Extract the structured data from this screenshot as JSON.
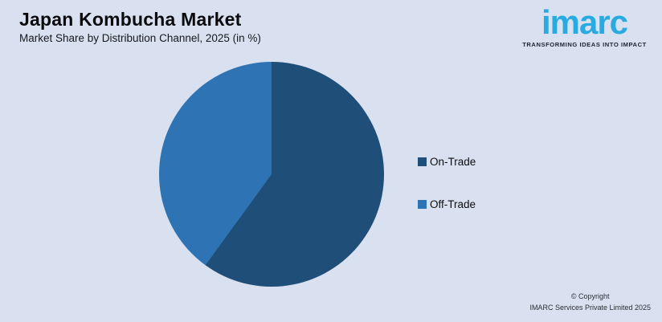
{
  "header": {
    "title": "Japan Kombucha Market",
    "subtitle": "Market Share by Distribution Channel, 2025 (in %)"
  },
  "logo": {
    "brand": "imarc",
    "tagline": "TRANSFORMING IDEAS INTO IMPACT",
    "brand_color": "#29ABE2"
  },
  "chart_data": {
    "type": "pie",
    "title": "Japan Kombucha Market — Market Share by Distribution Channel, 2025 (in %)",
    "start_angle_deg": 0,
    "direction": "clockwise",
    "values_shown_on_chart": false,
    "legend_position": "right",
    "slices": [
      {
        "label": "On-Trade",
        "value": 60,
        "color": "#1F4E79"
      },
      {
        "label": "Off-Trade",
        "value": 40,
        "color": "#2E74B5"
      }
    ]
  },
  "footer": {
    "copyright_line1": "© Copyright",
    "copyright_line2": "IMARC Services Private Limited 2025"
  },
  "colors": {
    "background": "#D9E1F1"
  }
}
